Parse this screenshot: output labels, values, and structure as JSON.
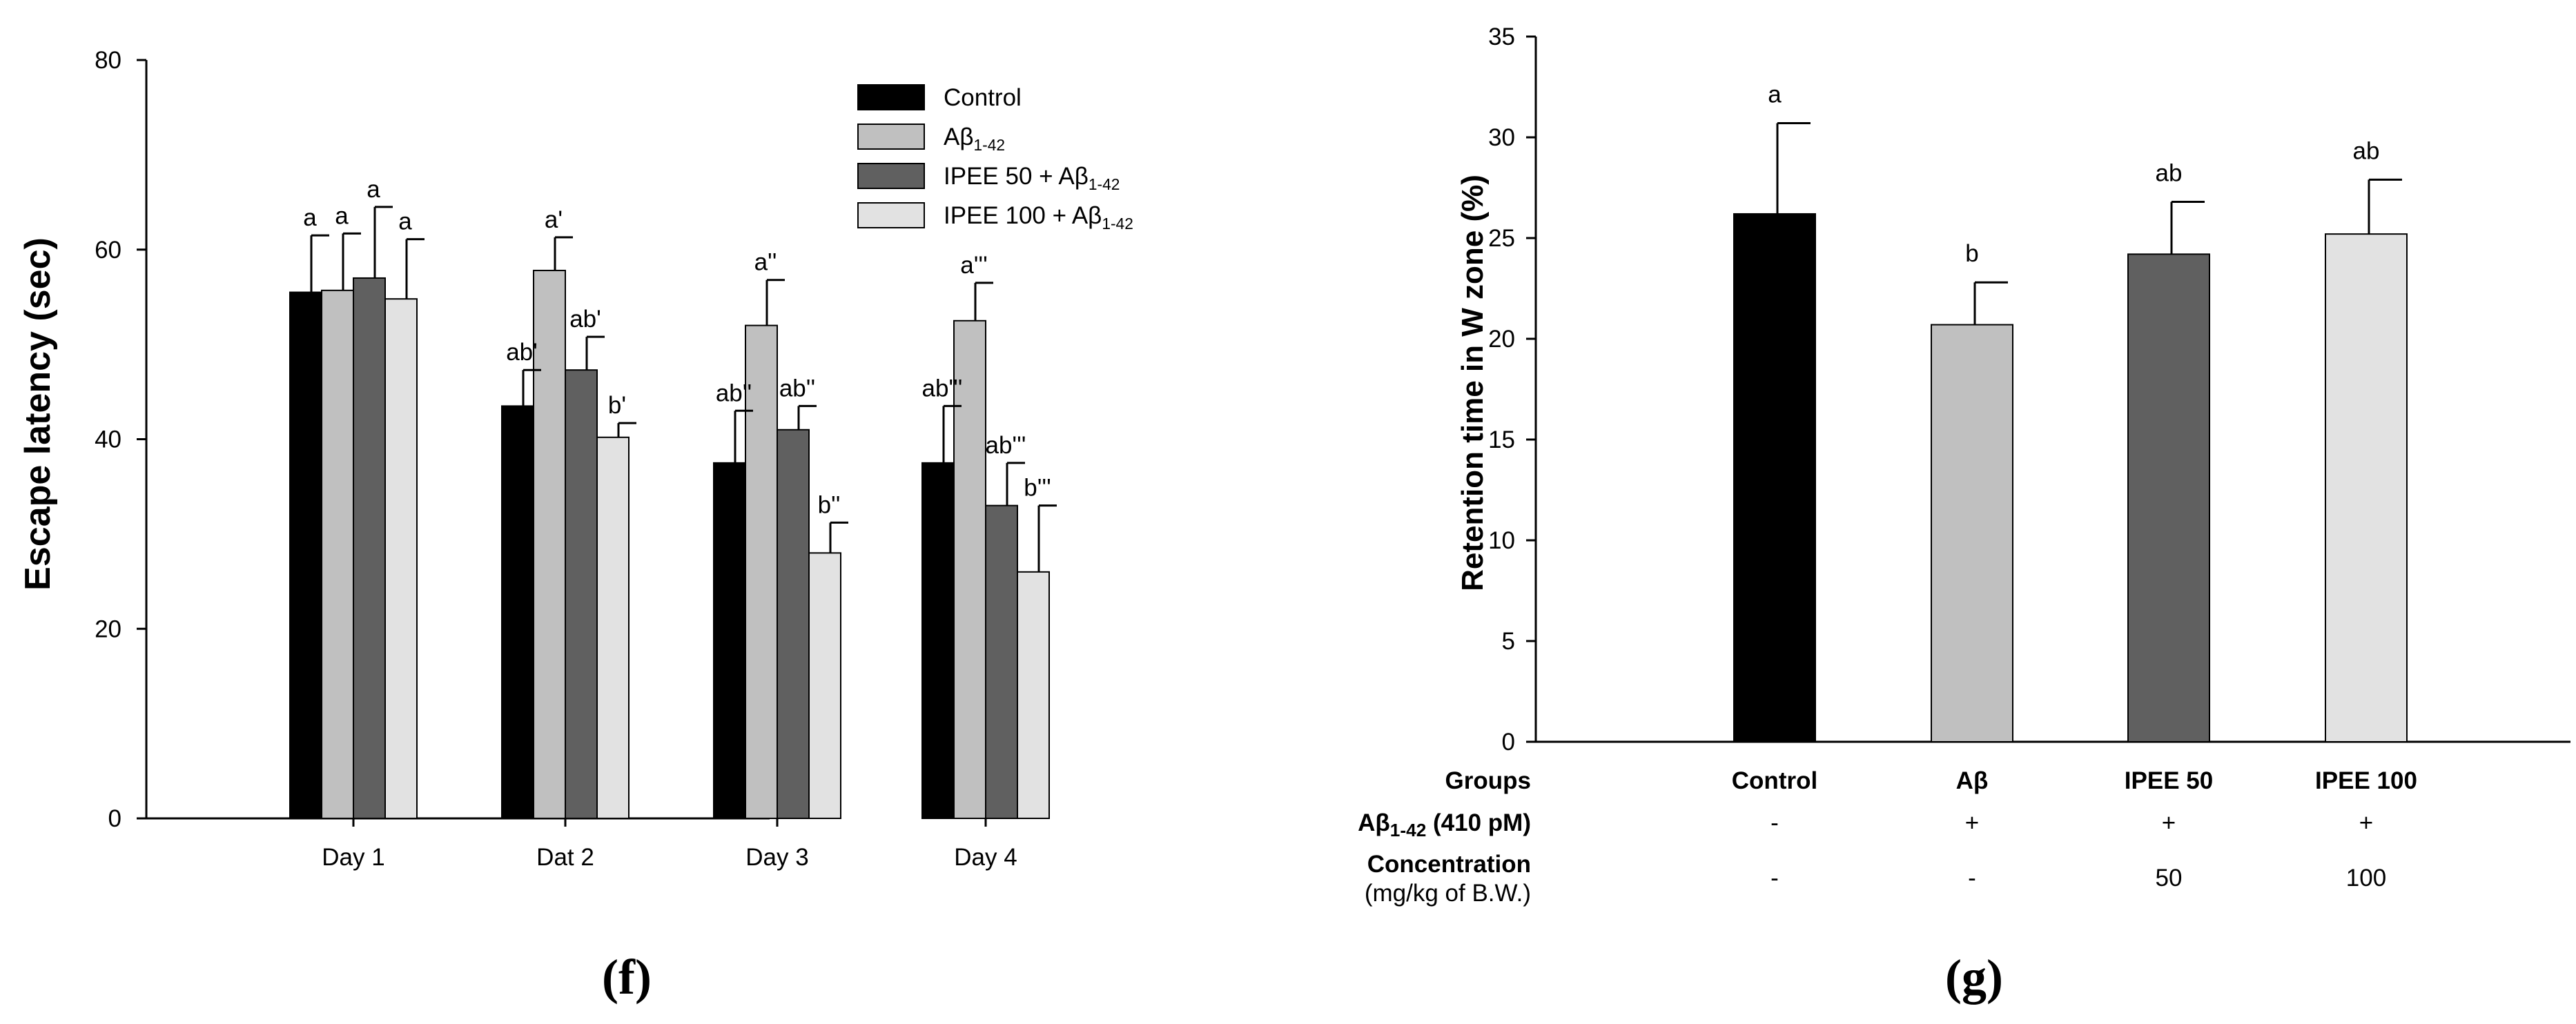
{
  "chart_data": [
    {
      "type": "bar",
      "panel": "(f)",
      "ylabel": "Escape latency (sec)",
      "ylim": [
        0,
        80
      ],
      "yticks": [
        "0",
        "20",
        "40",
        "60",
        "80"
      ],
      "categories": [
        "Day 1",
        "Dat 2",
        "Day 3",
        "Day 4"
      ],
      "colors": [
        "#000000",
        "#c0c0c0",
        "#606060",
        "#e2e2e2"
      ],
      "legend": [
        {
          "base": "Control",
          "sub": ""
        },
        {
          "base": "Aβ",
          "sub": "1-42"
        },
        {
          "base": "IPEE 50 + Aβ",
          "sub": "1-42"
        },
        {
          "base": "IPEE 100 + Aβ",
          "sub": "1-42"
        }
      ],
      "series": [
        {
          "name": "Control",
          "values": [
            55.5,
            43.5,
            37.5,
            37.5
          ],
          "errors": [
            6.0,
            3.8,
            5.5,
            6.0
          ],
          "letters": [
            "a",
            "ab'",
            "ab''",
            "ab'''"
          ]
        },
        {
          "name": "Aβ1-42",
          "values": [
            55.7,
            57.8,
            52.0,
            52.5
          ],
          "errors": [
            6.0,
            3.5,
            4.8,
            4.0
          ],
          "letters": [
            "a",
            "a'",
            "a''",
            "a'''"
          ]
        },
        {
          "name": "IPEE 50 + Aβ1-42",
          "values": [
            57.0,
            47.3,
            41.0,
            33.0
          ],
          "errors": [
            7.5,
            3.5,
            2.5,
            4.5
          ],
          "letters": [
            "a",
            "ab'",
            "ab''",
            "ab'''"
          ]
        },
        {
          "name": "IPEE 100 + Aβ1-42",
          "values": [
            54.8,
            40.2,
            28.0,
            26.0
          ],
          "errors": [
            6.3,
            1.5,
            3.2,
            7.0
          ],
          "letters": [
            "a",
            "b'",
            "b''",
            "b'''"
          ]
        }
      ]
    },
    {
      "type": "bar",
      "panel": "(g)",
      "ylabel": "Retention time in W zone (%)",
      "ylim": [
        0,
        35
      ],
      "yticks": [
        "0",
        "5",
        "10",
        "15",
        "20",
        "25",
        "30",
        "35"
      ],
      "categories": [
        "Control",
        "Aβ",
        "IPEE 50",
        "IPEE 100"
      ],
      "colors": [
        "#000000",
        "#c0c0c0",
        "#606060",
        "#e2e2e2"
      ],
      "values": [
        26.2,
        20.7,
        24.2,
        25.2
      ],
      "errors": [
        4.5,
        2.1,
        2.6,
        2.7
      ],
      "letters": [
        "a",
        "b",
        "ab",
        "ab"
      ],
      "table": {
        "groups_label": "Groups",
        "abeta_label_base": "Aβ",
        "abeta_label_sub": "1-42",
        "abeta_label_rest": " (410 pM)",
        "abeta_values": [
          "-",
          "+",
          "+",
          "+"
        ],
        "conc_label": "Concentration",
        "conc_unit": "(mg/kg of B.W.)",
        "conc_values": [
          "-",
          "-",
          "50",
          "100"
        ]
      }
    }
  ]
}
